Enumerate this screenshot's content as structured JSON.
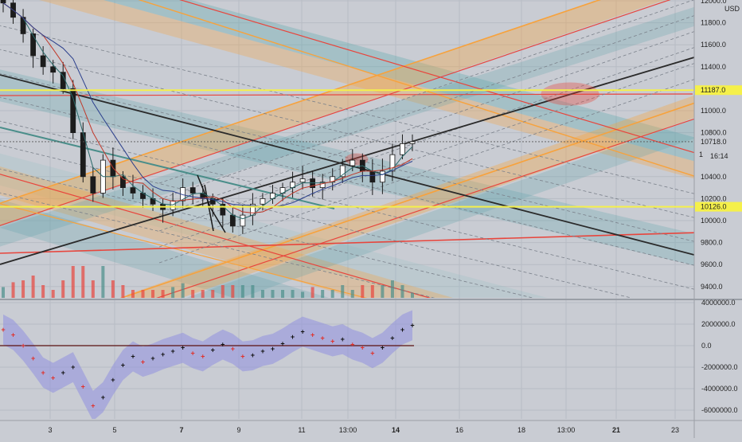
{
  "currency": "USD",
  "price_axis": {
    "ticks": [
      {
        "value": 12000,
        "label": "12000.0"
      },
      {
        "value": 11800,
        "label": "11800.0"
      },
      {
        "value": 11600,
        "label": "11600.0"
      },
      {
        "value": 11400,
        "label": "11400.0"
      },
      {
        "value": 11000,
        "label": "11000.0"
      },
      {
        "value": 10800,
        "label": "10800.0"
      },
      {
        "value": 10400,
        "label": "10400.0"
      },
      {
        "value": 10200,
        "label": "10200.0"
      },
      {
        "value": 10000,
        "label": "10000.0"
      },
      {
        "value": 9800,
        "label": "9800.0"
      },
      {
        "value": 9600,
        "label": "9600.0"
      },
      {
        "value": 9400,
        "label": "9400.0"
      }
    ],
    "markers": [
      {
        "value": 11187,
        "label": "11187.0",
        "kind": "level"
      },
      {
        "value": 10718,
        "label": "10718.0",
        "kind": "last"
      },
      {
        "value": 10126,
        "label": "10126.0",
        "kind": "level"
      }
    ],
    "countdown": "16:14",
    "partial_label": "1"
  },
  "osc_axis": {
    "ticks": [
      {
        "value": 4000000,
        "label": "4000000.0"
      },
      {
        "value": 2000000,
        "label": "2000000.0"
      },
      {
        "value": 0,
        "label": "0.0"
      },
      {
        "value": -2000000,
        "label": "-2000000.0"
      },
      {
        "value": -4000000,
        "label": "-4000000.0"
      },
      {
        "value": -6000000,
        "label": "-6000000.0"
      }
    ]
  },
  "time_axis": {
    "ticks": [
      {
        "label": "3",
        "bold": false
      },
      {
        "label": "5",
        "bold": false
      },
      {
        "label": "7",
        "bold": true
      },
      {
        "label": "9",
        "bold": false
      },
      {
        "label": "11",
        "bold": false
      },
      {
        "label": "13:00",
        "bold": false
      },
      {
        "label": "14",
        "bold": true
      },
      {
        "label": "16",
        "bold": false
      },
      {
        "label": "18",
        "bold": false
      },
      {
        "label": "13:00",
        "bold": false
      },
      {
        "label": "21",
        "bold": true
      },
      {
        "label": "23",
        "bold": false
      }
    ]
  },
  "colors": {
    "background": "#c9ccd3",
    "up": "#1c1c1c",
    "down": "#1c1c1c",
    "level_line": "#f5f04a",
    "trend_line": "#2a2a2a",
    "channel_orange": "#f7a23c",
    "channel_red": "#e8453c",
    "oscillator_up": "#111111",
    "oscillator_down": "#e0302a",
    "oscillator_band": "#8f8fe0"
  },
  "chart_data": [
    {
      "type": "candlestick",
      "title": "",
      "ylabel": "USD",
      "ylim": [
        9300,
        12050
      ],
      "x_tick_labels": [
        "3",
        "5",
        "7",
        "9",
        "11",
        "13:00",
        "14",
        "16",
        "18",
        "13:00",
        "21",
        "23"
      ],
      "horizontal_levels": [
        11187,
        10126
      ],
      "last_price": 10718,
      "close_approx": [
        11980,
        11850,
        11700,
        11500,
        11400,
        11350,
        11200,
        10800,
        10400,
        10250,
        10550,
        10400,
        10300,
        10250,
        10200,
        10150,
        10100,
        10180,
        10300,
        10250,
        10200,
        10150,
        10050,
        9950,
        10050,
        10150,
        10200,
        10250,
        10300,
        10350,
        10380,
        10300,
        10350,
        10400,
        10500,
        10550,
        10450,
        10350,
        10450,
        10600,
        10700,
        10718
      ],
      "volume_present": true
    },
    {
      "type": "line",
      "title": "",
      "ylim": [
        -6500000,
        4200000
      ],
      "series": [
        {
          "values": [
            1500000,
            1000000,
            0,
            -1200000,
            -2500000,
            -3000000,
            -2500000,
            -2000000,
            -3800000,
            -5600000,
            -4800000,
            -3200000,
            -1800000,
            -1000000,
            -1500000,
            -1200000,
            -800000,
            -500000,
            -200000,
            -700000,
            -1000000,
            -400000,
            100000,
            -300000,
            -1000000,
            -900000,
            -500000,
            -300000,
            200000,
            800000,
            1300000,
            1000000,
            700000,
            400000,
            600000,
            100000,
            -200000,
            -700000,
            -200000,
            700000,
            1500000,
            1900000
          ]
        }
      ],
      "zero_line": 0
    }
  ]
}
